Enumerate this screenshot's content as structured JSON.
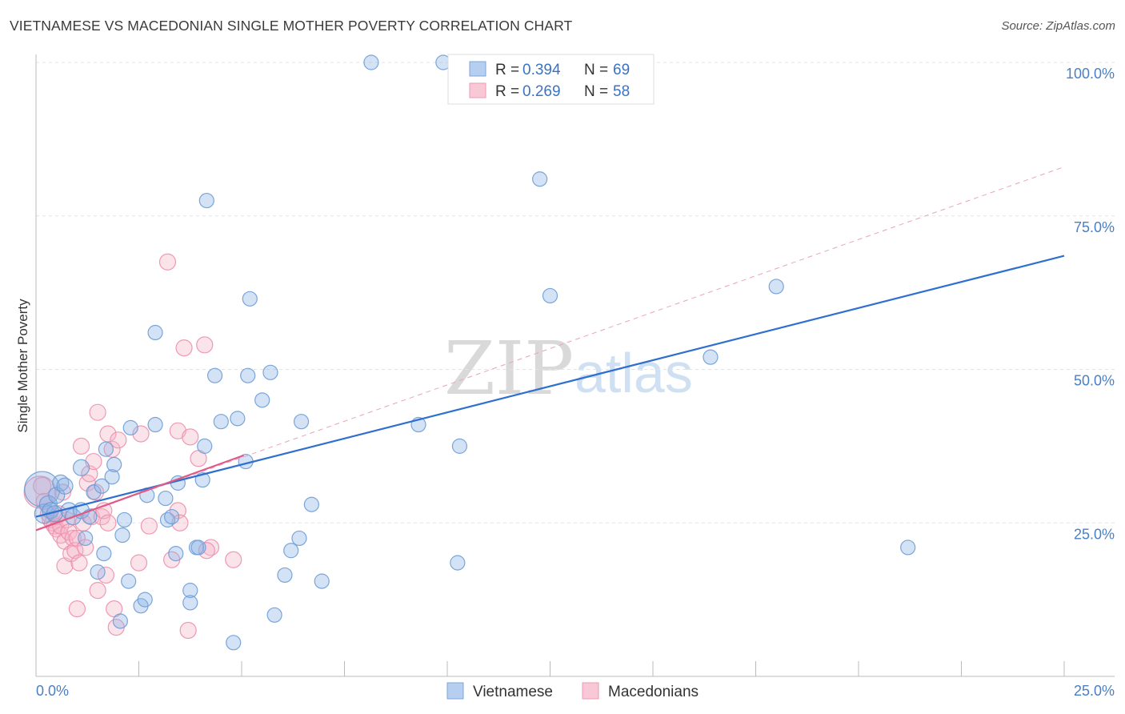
{
  "header": {
    "title": "VIETNAMESE VS MACEDONIAN SINGLE MOTHER POVERTY CORRELATION CHART",
    "source": "Source: ZipAtlas.com"
  },
  "watermark": {
    "zip": "ZIP",
    "atlas": "atlas"
  },
  "chart_data": {
    "type": "scatter",
    "title": "VIETNAMESE VS MACEDONIAN SINGLE MOTHER POVERTY CORRELATION CHART",
    "xlabel": "",
    "ylabel": "Single Mother Poverty",
    "xlim": [
      0,
      25
    ],
    "ylim": [
      0,
      100
    ],
    "x_tick_labels": [
      "0.0%",
      "25.0%"
    ],
    "y_ticks": [
      25,
      50,
      75,
      100
    ],
    "y_tick_labels": [
      "25.0%",
      "50.0%",
      "75.0%",
      "100.0%"
    ],
    "grid": true,
    "legend_position": "top-center",
    "stats_legend": [
      {
        "r_label": "R = ",
        "r_value": "0.394",
        "n_label": "N = ",
        "n_value": "69"
      },
      {
        "r_label": "R = ",
        "r_value": "0.269",
        "n_label": "N = ",
        "n_value": "58"
      }
    ],
    "series": [
      {
        "name": "Vietnamese",
        "color": "#8bb4e4",
        "edge_color": "#6d9cd6",
        "trend_color": "#2f6fcf",
        "trend": {
          "x0": 0,
          "y0": 26.0,
          "x1": 25,
          "y1": 68.5
        },
        "points": [
          [
            0.15,
            30.5,
            22
          ],
          [
            0.2,
            26.5,
            12
          ],
          [
            0.3,
            28,
            11
          ],
          [
            0.35,
            27,
            10
          ],
          [
            0.45,
            26.5,
            10
          ],
          [
            0.5,
            29.5,
            10
          ],
          [
            0.6,
            31.5,
            10
          ],
          [
            0.7,
            31,
            10
          ],
          [
            0.8,
            27,
            10
          ],
          [
            0.9,
            26,
            10
          ],
          [
            1.1,
            34,
            10
          ],
          [
            1.1,
            27,
            10
          ],
          [
            1.2,
            22.5,
            9
          ],
          [
            1.3,
            26,
            9
          ],
          [
            1.4,
            30,
            9
          ],
          [
            1.5,
            17,
            9
          ],
          [
            1.6,
            31,
            9
          ],
          [
            1.65,
            20,
            9
          ],
          [
            1.7,
            37,
            9
          ],
          [
            1.85,
            32.5,
            9
          ],
          [
            1.9,
            34.5,
            9
          ],
          [
            2.05,
            9,
            9
          ],
          [
            2.1,
            23,
            9
          ],
          [
            2.15,
            25.5,
            9
          ],
          [
            2.25,
            15.5,
            9
          ],
          [
            2.3,
            40.5,
            9
          ],
          [
            2.55,
            11.5,
            9
          ],
          [
            2.65,
            12.5,
            9
          ],
          [
            2.7,
            29.5,
            9
          ],
          [
            2.9,
            41,
            9
          ],
          [
            2.9,
            56,
            9
          ],
          [
            3.15,
            29,
            9
          ],
          [
            3.2,
            25.5,
            9
          ],
          [
            3.3,
            26,
            9
          ],
          [
            3.4,
            20,
            9
          ],
          [
            3.45,
            31.5,
            9
          ],
          [
            3.75,
            14,
            9
          ],
          [
            3.75,
            12,
            9
          ],
          [
            3.9,
            21,
            9
          ],
          [
            3.95,
            21,
            9
          ],
          [
            4.05,
            32,
            9
          ],
          [
            4.1,
            37.5,
            9
          ],
          [
            4.15,
            77.5,
            9
          ],
          [
            4.35,
            49,
            9
          ],
          [
            4.5,
            41.5,
            9
          ],
          [
            4.8,
            5.5,
            9
          ],
          [
            4.9,
            42,
            9
          ],
          [
            5.1,
            35,
            9
          ],
          [
            5.15,
            49,
            9
          ],
          [
            5.2,
            61.5,
            9
          ],
          [
            5.5,
            45,
            9
          ],
          [
            5.7,
            49.5,
            9
          ],
          [
            5.8,
            10,
            9
          ],
          [
            6.05,
            16.5,
            9
          ],
          [
            6.2,
            20.5,
            9
          ],
          [
            6.4,
            22.5,
            9
          ],
          [
            6.45,
            41.5,
            9
          ],
          [
            6.7,
            28,
            9
          ],
          [
            6.95,
            15.5,
            9
          ],
          [
            8.15,
            100,
            9
          ],
          [
            9.3,
            41,
            9
          ],
          [
            9.9,
            100,
            9
          ],
          [
            10.25,
            18.5,
            9
          ],
          [
            10.3,
            37.5,
            9
          ],
          [
            12.25,
            81,
            9
          ],
          [
            12.5,
            62,
            9
          ],
          [
            16.4,
            52,
            9
          ],
          [
            18,
            63.5,
            9
          ],
          [
            21.2,
            21,
            9
          ]
        ]
      },
      {
        "name": "Macedonians",
        "color": "#f5b5c9",
        "edge_color": "#ec8fac",
        "trend_color": "#e05a88",
        "trend": {
          "x0": 0,
          "y0": 23.8,
          "x1": 5.05,
          "y1": 36.0
        },
        "trend_extended": {
          "x0": 0,
          "y0": 23.8,
          "x1": 25,
          "y1": 83.0
        },
        "points": [
          [
            0.1,
            30,
            20
          ],
          [
            0.15,
            31,
            11
          ],
          [
            0.2,
            28.5,
            10
          ],
          [
            0.3,
            26.5,
            10
          ],
          [
            0.35,
            25.5,
            10
          ],
          [
            0.4,
            25,
            10
          ],
          [
            0.45,
            24.5,
            10
          ],
          [
            0.5,
            24,
            10
          ],
          [
            0.5,
            26,
            10
          ],
          [
            0.6,
            23,
            10
          ],
          [
            0.6,
            24.5,
            10
          ],
          [
            0.65,
            30,
            10
          ],
          [
            0.7,
            22,
            10
          ],
          [
            0.7,
            18,
            10
          ],
          [
            0.75,
            25.5,
            10
          ],
          [
            0.8,
            23.5,
            10
          ],
          [
            0.85,
            20,
            10
          ],
          [
            0.9,
            22.5,
            10
          ],
          [
            0.95,
            20.5,
            10
          ],
          [
            1.0,
            22.5,
            10
          ],
          [
            1.0,
            11,
            10
          ],
          [
            1.05,
            18.5,
            10
          ],
          [
            1.1,
            37.5,
            10
          ],
          [
            1.15,
            25,
            10
          ],
          [
            1.2,
            21,
            10
          ],
          [
            1.25,
            31.5,
            10
          ],
          [
            1.3,
            33,
            10
          ],
          [
            1.35,
            26,
            10
          ],
          [
            1.4,
            35,
            10
          ],
          [
            1.45,
            30,
            10
          ],
          [
            1.5,
            14,
            10
          ],
          [
            1.5,
            43,
            10
          ],
          [
            1.6,
            26,
            10
          ],
          [
            1.65,
            27,
            10
          ],
          [
            1.7,
            16.5,
            10
          ],
          [
            1.75,
            25,
            10
          ],
          [
            1.75,
            39.5,
            10
          ],
          [
            1.85,
            37,
            10
          ],
          [
            1.9,
            11,
            10
          ],
          [
            1.95,
            8,
            10
          ],
          [
            2.0,
            38.5,
            10
          ],
          [
            2.5,
            18.5,
            10
          ],
          [
            2.55,
            39.5,
            10
          ],
          [
            2.75,
            24.5,
            10
          ],
          [
            3.2,
            67.5,
            10
          ],
          [
            3.3,
            19,
            10
          ],
          [
            3.45,
            27,
            10
          ],
          [
            3.45,
            40,
            10
          ],
          [
            3.5,
            25,
            10
          ],
          [
            3.6,
            53.5,
            10
          ],
          [
            3.7,
            7.5,
            10
          ],
          [
            3.75,
            39,
            10
          ],
          [
            3.95,
            35.5,
            10
          ],
          [
            4.1,
            54,
            10
          ],
          [
            4.25,
            21,
            10
          ],
          [
            4.8,
            19,
            10
          ],
          [
            4.15,
            20.5,
            10
          ],
          [
            0.55,
            26.5,
            10
          ]
        ]
      }
    ]
  }
}
